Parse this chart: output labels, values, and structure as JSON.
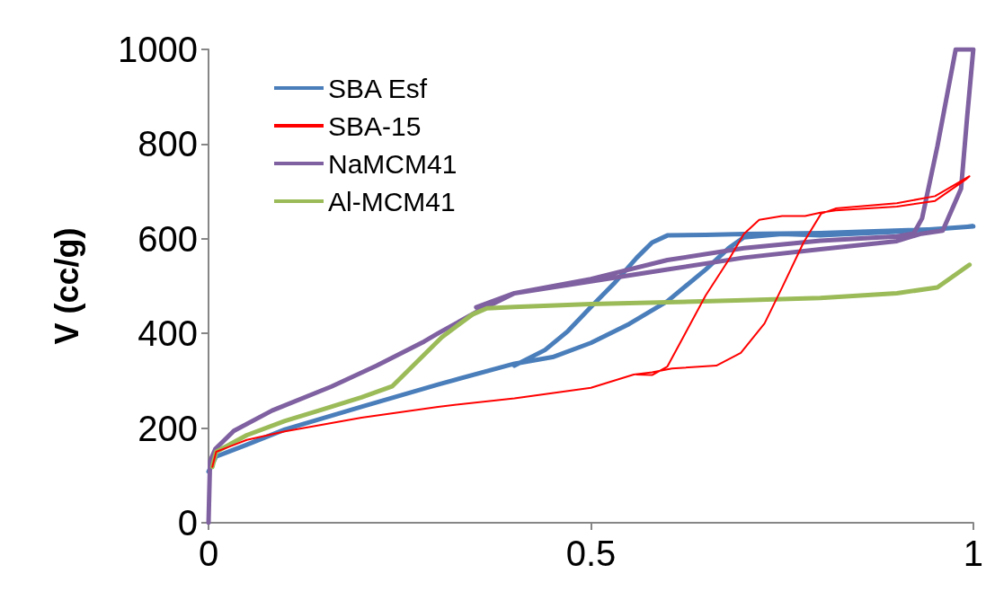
{
  "chart_data": {
    "type": "line",
    "ylabel": "V (cc/g)",
    "xlim": [
      0,
      1
    ],
    "xticks": [
      0,
      0.5,
      1
    ],
    "ylim": [
      0,
      1000
    ],
    "yticks": [
      0,
      200,
      400,
      600,
      800,
      1000
    ],
    "grid": false,
    "legend": "top left",
    "marker": "none",
    "line_style": "solid",
    "series": [
      {
        "name": "SBA Esf",
        "color": "#4a7ebb",
        "x": [
          0,
          0.01,
          0.05,
          0.1,
          0.2,
          0.3,
          0.4,
          0.45,
          0.5,
          0.55,
          0.6,
          0.65,
          0.68,
          0.7,
          0.75,
          0.8,
          0.9,
          1.0,
          0.95,
          0.8,
          0.7,
          0.65,
          0.6,
          0.58,
          0.56,
          0.53,
          0.5,
          0.47,
          0.44,
          0.4
        ],
        "values": [
          108,
          140,
          165,
          197,
          245,
          292,
          336,
          350,
          380,
          420,
          468,
          535,
          580,
          603,
          610,
          607,
          615,
          626,
          620,
          612,
          610,
          608,
          607,
          592,
          560,
          505,
          456,
          405,
          365,
          332
        ]
      },
      {
        "name": "SBA-15",
        "color": "#ff0000",
        "x": [
          0.005,
          0.01,
          0.05,
          0.1,
          0.2,
          0.3,
          0.4,
          0.5,
          0.556,
          0.58,
          0.606,
          0.664,
          0.696,
          0.727,
          0.75,
          0.778,
          0.801,
          0.82,
          0.9,
          0.95,
          0.995,
          0.99,
          0.95,
          0.9,
          0.82,
          0.8,
          0.78,
          0.75,
          0.72,
          0.7,
          0.68,
          0.65,
          0.62,
          0.6,
          0.58,
          0.56
        ],
        "values": [
          118,
          150,
          175,
          193,
          222,
          245,
          263,
          285,
          313,
          318,
          326,
          332,
          359,
          421,
          497,
          592,
          653,
          664,
          675,
          690,
          732,
          725,
          680,
          668,
          660,
          655,
          648,
          648,
          640,
          610,
          555,
          480,
          390,
          330,
          312,
          313
        ]
      },
      {
        "name": "NaMCM41",
        "color": "#7f60a0",
        "x": [
          0,
          0.002,
          0.009,
          0.033,
          0.083,
          0.161,
          0.22,
          0.282,
          0.3,
          0.35,
          0.4,
          0.5,
          0.6,
          0.7,
          0.8,
          0.9,
          0.93,
          0.96,
          0.984,
          0.992,
          1.0,
          0.977,
          0.953,
          0.933,
          0.922,
          0.9,
          0.8,
          0.7,
          0.6,
          0.5,
          0.4,
          0.35
        ],
        "values": [
          0,
          130,
          156,
          194,
          237,
          288,
          332,
          383,
          400,
          445,
          485,
          510,
          535,
          560,
          578,
          595,
          610,
          617,
          706,
          858,
          1000,
          1000,
          795,
          643,
          611,
          605,
          596,
          580,
          555,
          515,
          485,
          455
        ]
      },
      {
        "name": "Al-MCM41",
        "color": "#9bbb59",
        "x": [
          0.005,
          0.01,
          0.05,
          0.1,
          0.15,
          0.2,
          0.24,
          0.305,
          0.345,
          0.364,
          0.4,
          0.5,
          0.6,
          0.7,
          0.8,
          0.9,
          0.953,
          0.995
        ],
        "values": [
          118,
          150,
          185,
          215,
          240,
          265,
          288,
          392,
          440,
          453,
          456,
          462,
          466,
          470,
          475,
          485,
          497,
          545
        ]
      }
    ]
  }
}
